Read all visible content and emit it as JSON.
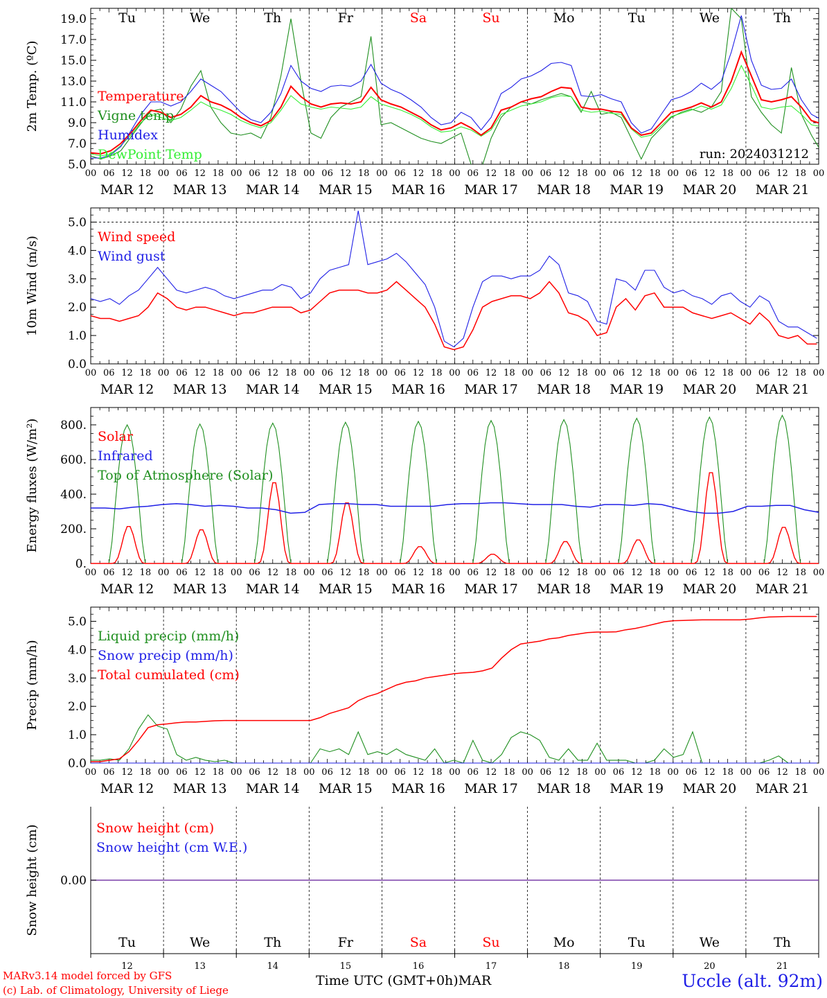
{
  "run_label": "run: 2024031212",
  "hour_ticks": [
    "00",
    "06",
    "12",
    "18"
  ],
  "hour_tick_final": "00",
  "day_names": [
    "Tu",
    "We",
    "Th",
    "Fr",
    "Sa",
    "Su",
    "Mo",
    "Tu",
    "We",
    "Th"
  ],
  "weekend_days": [
    4,
    5
  ],
  "day_dates": [
    "MAR 12",
    "MAR 13",
    "MAR 14",
    "MAR 15",
    "MAR 16",
    "MAR 17",
    "MAR 18",
    "MAR 19",
    "MAR 20",
    "MAR 21"
  ],
  "day_numbers": [
    "12",
    "13",
    "14",
    "15",
    "16",
    "17",
    "18",
    "19",
    "20",
    "21"
  ],
  "footer": {
    "model": "MARv3.14 model forced by GFS",
    "copyright": "(c) Lab. of Climatology, University of Liege",
    "time_axis": "Time UTC (GMT+0h)",
    "month": "MAR",
    "station": "Uccle (alt. 92m)"
  },
  "colors": {
    "red": "#ff0000",
    "green": "#1f8f1f",
    "blue": "#1f1fe6",
    "lightgreen": "#33ee33",
    "purple": "#7a3fa8"
  },
  "chart_data": [
    {
      "type": "line",
      "ylabel": "2m Temp. (ºC)",
      "ylim": [
        5,
        20
      ],
      "yticks": [
        "5.0",
        "7.0",
        "9.0",
        "11.0",
        "13.0",
        "15.0",
        "17.0",
        "19.0"
      ],
      "x_unit": "hours from 2024-03-12 00 UTC, 3-hourly",
      "legend": [
        "Temperature",
        "Vigne temp",
        "Humidex",
        "DewPoint Temp"
      ],
      "series": [
        {
          "name": "Temperature",
          "color": "red",
          "values": [
            6.1,
            6.0,
            6.3,
            7.0,
            8.0,
            9.2,
            10.2,
            10.0,
            9.5,
            9.8,
            10.5,
            11.6,
            11.0,
            10.7,
            10.2,
            9.5,
            9.0,
            8.7,
            9.2,
            10.5,
            12.5,
            11.5,
            10.8,
            10.5,
            10.8,
            10.9,
            10.8,
            11.0,
            12.4,
            11.2,
            10.8,
            10.5,
            10.0,
            9.5,
            8.8,
            8.3,
            8.5,
            9.0,
            8.5,
            7.8,
            8.5,
            10.2,
            10.5,
            11.0,
            11.3,
            11.5,
            12.0,
            12.4,
            12.3,
            10.5,
            10.3,
            10.3,
            10.1,
            10.0,
            8.5,
            7.8,
            8.0,
            9.0,
            10.0,
            10.2,
            10.5,
            10.9,
            10.5,
            11.0,
            13.0,
            15.8,
            13.5,
            11.2,
            11.0,
            11.2,
            11.5,
            10.5,
            9.2,
            8.9
          ]
        },
        {
          "name": "Vigne temp",
          "color": "green",
          "values": [
            5.8,
            5.5,
            5.8,
            6.3,
            7.6,
            8.9,
            10.1,
            10.3,
            9.0,
            10.3,
            12.5,
            14.0,
            10.5,
            9.0,
            8.0,
            7.8,
            8.0,
            7.5,
            9.5,
            13.5,
            19.0,
            13.0,
            8.0,
            7.5,
            9.5,
            10.5,
            11.0,
            11.5,
            17.3,
            8.8,
            9.0,
            8.5,
            8.0,
            7.5,
            7.2,
            7.0,
            7.5,
            8.0,
            5.0,
            4.5,
            7.5,
            9.5,
            10.5,
            11.0,
            10.8,
            11.2,
            11.5,
            11.8,
            11.5,
            10.0,
            12.0,
            9.8,
            10.0,
            9.5,
            7.5,
            5.5,
            7.5,
            8.5,
            9.5,
            10.0,
            10.3,
            10.0,
            10.5,
            12.0,
            20.0,
            19.0,
            11.5,
            10.0,
            8.8,
            8.0,
            14.3,
            9.8,
            7.8,
            6.2
          ]
        },
        {
          "name": "Humidex",
          "color": "blue",
          "values": [
            5.6,
            5.6,
            5.9,
            6.7,
            8.2,
            9.8,
            11.0,
            11.0,
            10.6,
            11.0,
            12.0,
            13.2,
            12.6,
            12.0,
            11.0,
            10.0,
            9.3,
            9.0,
            10.0,
            11.8,
            14.5,
            13.0,
            12.3,
            12.0,
            12.5,
            12.6,
            12.5,
            13.0,
            14.6,
            12.8,
            12.2,
            11.8,
            11.2,
            10.5,
            9.5,
            8.8,
            9.0,
            10.0,
            9.5,
            8.3,
            9.5,
            11.8,
            12.4,
            13.2,
            13.5,
            14.0,
            14.7,
            14.8,
            14.5,
            11.6,
            11.5,
            11.7,
            11.3,
            11.0,
            9.0,
            8.0,
            8.4,
            9.8,
            11.2,
            11.5,
            12.0,
            12.8,
            12.2,
            13.0,
            15.8,
            19.3,
            15.0,
            12.6,
            12.2,
            12.3,
            13.2,
            11.2,
            9.8,
            9.3
          ]
        },
        {
          "name": "DewPoint Temp",
          "color": "lightgreen",
          "values": [
            6.0,
            5.8,
            6.0,
            6.8,
            7.8,
            9.0,
            9.8,
            9.5,
            9.2,
            9.5,
            10.2,
            11.0,
            10.5,
            10.2,
            9.8,
            9.2,
            8.8,
            8.5,
            9.0,
            10.2,
            11.6,
            10.8,
            10.5,
            10.3,
            10.5,
            10.4,
            10.3,
            10.5,
            11.5,
            10.8,
            10.5,
            10.2,
            9.8,
            9.3,
            8.6,
            8.1,
            8.2,
            8.6,
            8.3,
            7.7,
            8.3,
            9.8,
            10.2,
            10.6,
            10.8,
            11.0,
            11.4,
            11.6,
            11.5,
            10.2,
            10.0,
            10.1,
            9.9,
            9.8,
            8.4,
            7.6,
            7.8,
            8.7,
            9.6,
            9.9,
            10.2,
            10.6,
            10.3,
            10.7,
            12.3,
            14.5,
            12.6,
            10.5,
            10.3,
            10.5,
            10.6,
            9.8,
            8.8,
            8.6
          ]
        }
      ]
    },
    {
      "type": "line",
      "ylabel": "10m Wind (m/s)",
      "ylim": [
        0,
        5.5
      ],
      "yticks": [
        "0.0",
        "1.0",
        "2.0",
        "3.0",
        "4.0",
        "5.0"
      ],
      "legend": [
        "Wind speed",
        "Wind gust"
      ],
      "series": [
        {
          "name": "Wind speed",
          "color": "red",
          "values": [
            1.7,
            1.6,
            1.6,
            1.5,
            1.6,
            1.7,
            2.0,
            2.5,
            2.3,
            2.0,
            1.9,
            2.0,
            2.0,
            1.9,
            1.8,
            1.7,
            1.8,
            1.8,
            1.9,
            2.0,
            2.0,
            2.0,
            1.8,
            1.9,
            2.2,
            2.5,
            2.6,
            2.6,
            2.6,
            2.5,
            2.5,
            2.6,
            2.9,
            2.6,
            2.3,
            2.0,
            1.4,
            0.6,
            0.5,
            0.6,
            1.2,
            2.0,
            2.2,
            2.3,
            2.4,
            2.4,
            2.3,
            2.5,
            2.9,
            2.5,
            1.8,
            1.7,
            1.5,
            1.0,
            1.1,
            2.0,
            2.3,
            1.9,
            2.4,
            2.5,
            2.0,
            2.0,
            2.0,
            1.8,
            1.7,
            1.6,
            1.7,
            1.8,
            1.6,
            1.4,
            1.8,
            1.5,
            1.0,
            0.9,
            1.0,
            0.7,
            0.7
          ]
        },
        {
          "name": "Wind gust",
          "color": "blue",
          "values": [
            2.3,
            2.2,
            2.3,
            2.1,
            2.4,
            2.6,
            3.0,
            3.4,
            3.0,
            2.6,
            2.5,
            2.6,
            2.7,
            2.6,
            2.4,
            2.3,
            2.4,
            2.5,
            2.6,
            2.6,
            2.8,
            2.7,
            2.3,
            2.5,
            3.0,
            3.3,
            3.4,
            3.5,
            5.4,
            3.5,
            3.6,
            3.7,
            3.9,
            3.6,
            3.2,
            2.8,
            2.0,
            0.8,
            0.6,
            0.9,
            2.0,
            2.9,
            3.1,
            3.1,
            3.0,
            3.1,
            3.1,
            3.3,
            3.8,
            3.5,
            2.5,
            2.4,
            2.2,
            1.5,
            1.4,
            3.0,
            2.9,
            2.6,
            3.3,
            3.3,
            2.7,
            2.5,
            2.6,
            2.4,
            2.3,
            2.1,
            2.4,
            2.5,
            2.2,
            2.0,
            2.4,
            2.2,
            1.5,
            1.3,
            1.3,
            1.1,
            0.9
          ]
        }
      ]
    },
    {
      "type": "line",
      "ylabel": "Energy fluxes (W/m²)",
      "ylim": [
        0,
        900
      ],
      "yticks": [
        "0.",
        "200.",
        "400.",
        "600.",
        "800."
      ],
      "legend": [
        "Solar",
        "Infrared",
        "Top of Atmosphere (Solar)"
      ],
      "toa_peaks": [
        800,
        805,
        810,
        815,
        820,
        825,
        830,
        838,
        845,
        855
      ],
      "solar_peaks": [
        220,
        200,
        480,
        360,
        100,
        55,
        130,
        140,
        540,
        215
      ],
      "infrared": [
        320,
        320,
        315,
        325,
        330,
        340,
        345,
        340,
        330,
        335,
        330,
        320,
        320,
        310,
        290,
        295,
        340,
        345,
        345,
        340,
        340,
        330,
        330,
        330,
        330,
        340,
        345,
        345,
        350,
        350,
        345,
        340,
        340,
        340,
        330,
        325,
        340,
        340,
        335,
        345,
        340,
        320,
        300,
        290,
        290,
        300,
        330,
        330,
        335,
        335,
        310,
        295
      ]
    },
    {
      "type": "line",
      "ylabel": "Precip (mm/h)",
      "ylim": [
        0,
        5.5
      ],
      "yticks": [
        "0.0",
        "1.0",
        "2.0",
        "3.0",
        "4.0",
        "5.0"
      ],
      "legend": [
        "Liquid precip (mm/h)",
        "Snow precip (mm/h)",
        "Total cumulated (cm)"
      ],
      "series": [
        {
          "name": "Liquid precip (mm/h)",
          "color": "green",
          "values": [
            0.1,
            0.1,
            0.15,
            0.1,
            0.5,
            1.2,
            1.7,
            1.3,
            1.2,
            0.3,
            0.1,
            0.2,
            0.1,
            0.05,
            0.1,
            0.0,
            0.0,
            0.0,
            0.0,
            0.0,
            0.0,
            0.0,
            0.0,
            0.0,
            0.5,
            0.4,
            0.5,
            0.3,
            1.1,
            0.3,
            0.4,
            0.3,
            0.5,
            0.3,
            0.2,
            0.1,
            0.5,
            0.0,
            0.1,
            0.0,
            0.8,
            0.1,
            0.0,
            0.3,
            0.9,
            1.1,
            1.0,
            0.8,
            0.2,
            0.1,
            0.5,
            0.1,
            0.1,
            0.7,
            0.1,
            0.1,
            0.1,
            0.0,
            0.0,
            0.1,
            0.5,
            0.2,
            0.3,
            1.1,
            0.0,
            0.0,
            0.0,
            0.0,
            0.0,
            0.0,
            0.0,
            0.1,
            0.25,
            0.0,
            0.0,
            0.0,
            0.0
          ]
        },
        {
          "name": "Snow precip (mm/h)",
          "color": "blue",
          "values": [
            0,
            0,
            0,
            0,
            0,
            0,
            0,
            0,
            0,
            0,
            0,
            0,
            0,
            0,
            0,
            0,
            0,
            0,
            0,
            0,
            0,
            0,
            0,
            0,
            0,
            0,
            0,
            0,
            0,
            0,
            0,
            0,
            0,
            0,
            0,
            0,
            0,
            0,
            0,
            0,
            0,
            0,
            0,
            0,
            0,
            0,
            0,
            0,
            0,
            0,
            0,
            0,
            0,
            0,
            0,
            0,
            0,
            0,
            0,
            0,
            0,
            0,
            0,
            0,
            0,
            0,
            0,
            0,
            0,
            0,
            0,
            0,
            0,
            0,
            0,
            0,
            0
          ]
        },
        {
          "name": "Total cumulated (cm)",
          "color": "red",
          "values": [
            0.05,
            0.05,
            0.1,
            0.15,
            0.4,
            0.8,
            1.25,
            1.35,
            1.38,
            1.42,
            1.45,
            1.45,
            1.47,
            1.49,
            1.5,
            1.5,
            1.5,
            1.5,
            1.5,
            1.5,
            1.5,
            1.5,
            1.5,
            1.5,
            1.6,
            1.75,
            1.85,
            1.95,
            2.2,
            2.35,
            2.45,
            2.6,
            2.75,
            2.85,
            2.9,
            3.0,
            3.05,
            3.1,
            3.15,
            3.18,
            3.2,
            3.25,
            3.35,
            3.7,
            4.0,
            4.2,
            4.25,
            4.3,
            4.38,
            4.42,
            4.5,
            4.55,
            4.6,
            4.62,
            4.62,
            4.63,
            4.7,
            4.75,
            4.82,
            4.9,
            4.98,
            5.02,
            5.03,
            5.04,
            5.05,
            5.05,
            5.05,
            5.05,
            5.05,
            5.08,
            5.12,
            5.15,
            5.16,
            5.17,
            5.17,
            5.17,
            5.17
          ]
        }
      ]
    },
    {
      "type": "line",
      "ylabel": "Snow height (cm)",
      "yticks": [
        "0.00"
      ],
      "legend": [
        "Snow height (cm)",
        "Snow height (cm W.E.)"
      ],
      "series": [
        {
          "name": "Snow height (cm)",
          "color": "red",
          "values": [
            0,
            0
          ]
        },
        {
          "name": "Snow height (cm W.E.)",
          "color": "blue",
          "values": [
            0,
            0
          ]
        }
      ]
    }
  ]
}
